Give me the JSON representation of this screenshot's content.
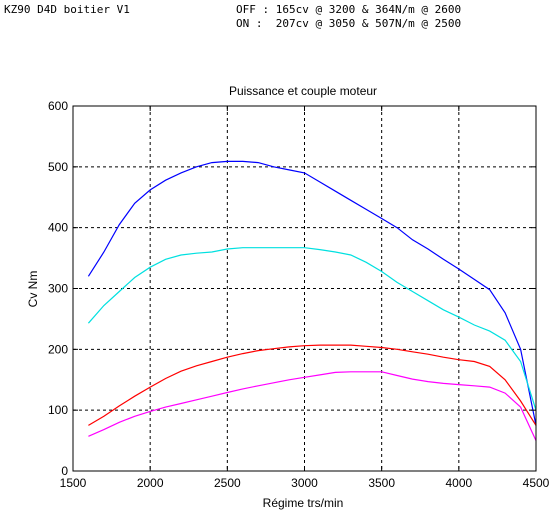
{
  "header": {
    "left": "KZ90 D4D boitier V1",
    "off_line": "OFF : 165cv @ 3200 & 364N/m @ 2600",
    "on_line": "ON :  207cv @ 3050 & 507N/m @ 2500"
  },
  "chart_data": {
    "type": "line",
    "title": "Puissance et couple moteur",
    "xlabel": "Régime trs/min",
    "ylabel": "Cv Nm",
    "xlim": [
      1500,
      4500
    ],
    "ylim": [
      0,
      600
    ],
    "xticks": [
      1500,
      2000,
      2500,
      3000,
      3500,
      4000,
      4500
    ],
    "yticks": [
      0,
      100,
      200,
      300,
      400,
      500,
      600
    ],
    "grid": true,
    "series": [
      {
        "color": "#0000ff",
        "x": [
          1600,
          1700,
          1800,
          1900,
          2000,
          2100,
          2200,
          2300,
          2400,
          2500,
          2600,
          2700,
          2800,
          2900,
          3000,
          3100,
          3200,
          3300,
          3400,
          3500,
          3600,
          3700,
          3800,
          3900,
          4000,
          4100,
          4200,
          4300,
          4400,
          4500
        ],
        "y": [
          320,
          360,
          405,
          440,
          462,
          478,
          490,
          500,
          507,
          509,
          509,
          507,
          500,
          495,
          490,
          475,
          460,
          445,
          430,
          415,
          400,
          380,
          365,
          348,
          332,
          315,
          298,
          260,
          200,
          75
        ]
      },
      {
        "color": "#00e0e0",
        "x": [
          1600,
          1700,
          1800,
          1900,
          2000,
          2100,
          2200,
          2300,
          2400,
          2500,
          2600,
          2700,
          2800,
          2900,
          3000,
          3100,
          3200,
          3300,
          3400,
          3500,
          3600,
          3700,
          3800,
          3900,
          4000,
          4100,
          4200,
          4300,
          4400,
          4500
        ],
        "y": [
          243,
          272,
          295,
          318,
          335,
          348,
          355,
          358,
          360,
          365,
          367,
          367,
          367,
          367,
          367,
          364,
          360,
          355,
          343,
          328,
          310,
          295,
          280,
          265,
          253,
          240,
          230,
          215,
          180,
          100
        ]
      },
      {
        "color": "#ff0000",
        "x": [
          1600,
          1700,
          1800,
          1900,
          2000,
          2100,
          2200,
          2300,
          2400,
          2500,
          2600,
          2700,
          2800,
          2900,
          3000,
          3100,
          3200,
          3300,
          3400,
          3500,
          3600,
          3700,
          3800,
          3900,
          4000,
          4100,
          4200,
          4300,
          4400,
          4500
        ],
        "y": [
          75,
          90,
          107,
          123,
          138,
          152,
          164,
          173,
          180,
          187,
          193,
          198,
          201,
          204,
          206,
          207,
          207,
          207,
          205,
          203,
          200,
          196,
          192,
          187,
          183,
          180,
          172,
          150,
          115,
          75
        ]
      },
      {
        "color": "#ff00ff",
        "x": [
          1600,
          1700,
          1800,
          1900,
          2000,
          2100,
          2200,
          2300,
          2400,
          2500,
          2600,
          2700,
          2800,
          2900,
          3000,
          3100,
          3200,
          3300,
          3400,
          3500,
          3600,
          3700,
          3800,
          3900,
          4000,
          4100,
          4200,
          4300,
          4400,
          4500
        ],
        "y": [
          57,
          68,
          80,
          90,
          98,
          105,
          111,
          117,
          123,
          129,
          135,
          140,
          145,
          150,
          154,
          158,
          162,
          163,
          163,
          163,
          157,
          151,
          147,
          144,
          142,
          140,
          138,
          128,
          105,
          50
        ]
      }
    ]
  }
}
